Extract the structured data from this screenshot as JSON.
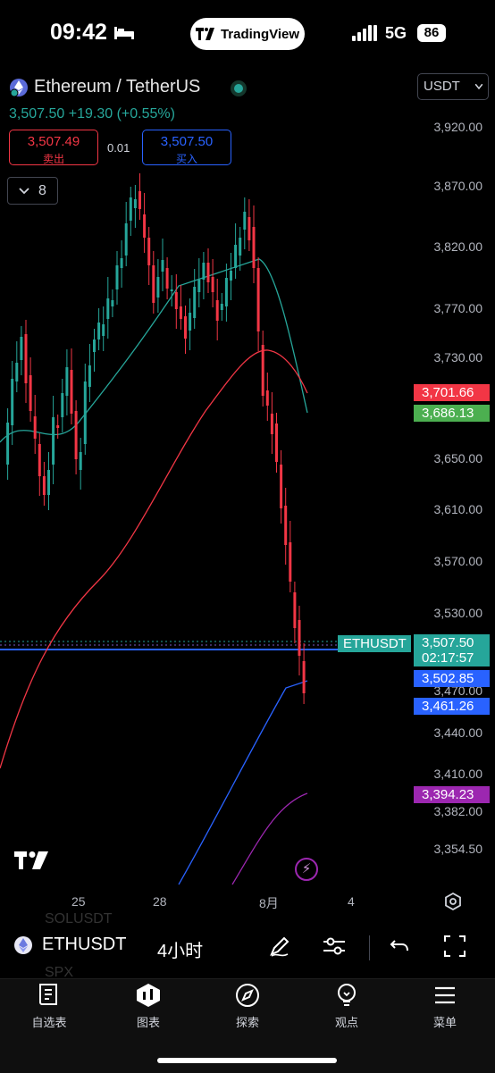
{
  "status_bar": {
    "time": "09:42",
    "network": "5G",
    "battery": "86",
    "app_pill": "TradingView"
  },
  "header": {
    "symbol_title": "Ethereum / TetherUS",
    "currency": "USDT",
    "last_price": "3,507.50",
    "change": "+19.30",
    "change_pct": "(+0.55%)",
    "sell_price": "3,507.49",
    "sell_label": "卖出",
    "spread": "0.01",
    "buy_price": "3,507.50",
    "buy_label": "买入",
    "indicator_count": "8"
  },
  "price_axis": {
    "ticks": [
      "3,920.00",
      "3,870.00",
      "3,820.00",
      "3,770.00",
      "3,730.00",
      "3,650.00",
      "3,610.00",
      "3,570.00",
      "3,530.00",
      "3,470.00",
      "3,440.00",
      "3,410.00",
      "3,382.00",
      "3,354.50"
    ],
    "labels": [
      {
        "text": "3,701.66",
        "color": "#f23645"
      },
      {
        "text": "3,686.13",
        "color": "#4caf50"
      },
      {
        "text": "3,507.50",
        "color": "#26a69a"
      },
      {
        "text": "02:17:57",
        "color": "#26a69a"
      },
      {
        "text": "3,502.85",
        "color": "#2962ff"
      },
      {
        "text": "3,461.26",
        "color": "#2962ff"
      },
      {
        "text": "3,394.23",
        "color": "#9c27b0"
      }
    ],
    "symbol_tag": "ETHUSDT"
  },
  "time_axis": [
    "25",
    "28",
    "8月",
    "4"
  ],
  "watchlist_ghost": [
    "SOLUSDT",
    "SPX"
  ],
  "toolbar": {
    "symbol": "ETHUSDT",
    "interval": "4小时"
  },
  "tabs": [
    {
      "label": "自选表",
      "icon": "watchlist-icon"
    },
    {
      "label": "图表",
      "icon": "chart-icon"
    },
    {
      "label": "探索",
      "icon": "compass-icon"
    },
    {
      "label": "观点",
      "icon": "idea-icon"
    },
    {
      "label": "菜单",
      "icon": "menu-icon"
    }
  ],
  "colors": {
    "up": "#26a69a",
    "down": "#f23645",
    "ma_fast": "#4caf50",
    "ma_mid": "#f23645",
    "ma_blue": "#2962ff",
    "ma_purple": "#9c27b0",
    "accent": "#2962ff"
  }
}
